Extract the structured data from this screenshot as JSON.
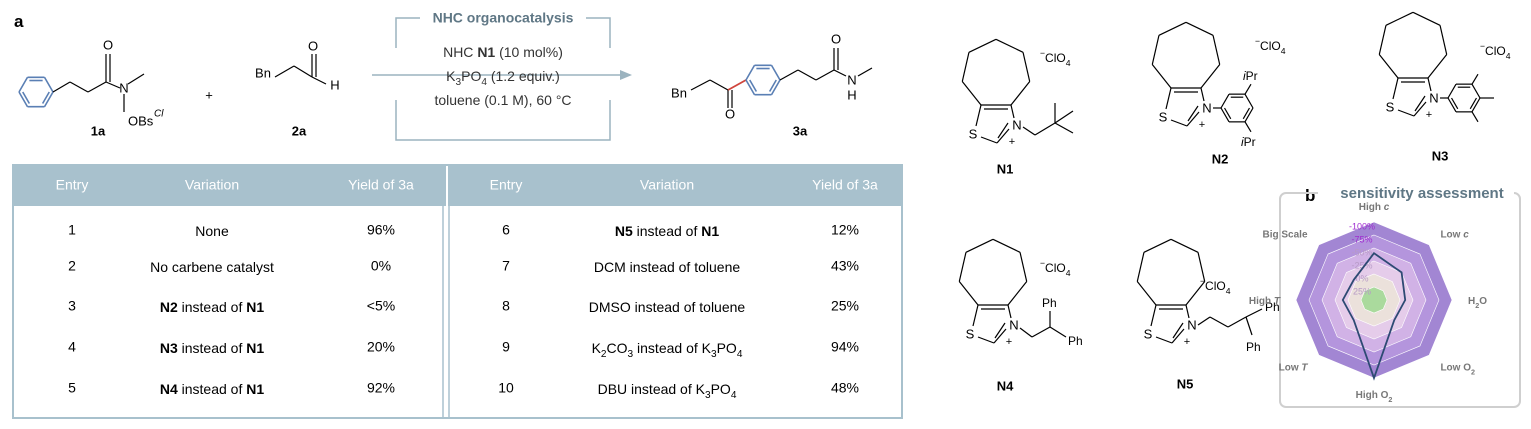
{
  "panel_labels": [
    "a",
    "b"
  ],
  "scheme": {
    "box_title": "NHC organocatalysis",
    "conditions": [
      [
        {
          "text": "NHC "
        },
        {
          "text": "N1",
          "bold": true
        },
        {
          "text": " (10 mol%)"
        }
      ],
      [
        {
          "text": "K"
        },
        {
          "text": "3",
          "sub": true
        },
        {
          "text": "PO"
        },
        {
          "text": "4",
          "sub": true
        },
        {
          "text": " (1.2 equiv.)"
        }
      ],
      [
        {
          "text": "toluene (0.1 M), 60 °C"
        }
      ]
    ],
    "plus": "+",
    "compounds": [
      {
        "label": "1a",
        "atoms": [
          "O",
          "N",
          "OBs",
          "Cl"
        ]
      },
      {
        "label": "2a",
        "atoms": [
          "Bn",
          "O",
          "H"
        ]
      },
      {
        "label": "3a",
        "atoms": [
          "Bn",
          "O",
          "O",
          "N",
          "H"
        ]
      }
    ]
  },
  "catalysts": [
    {
      "label": "N1",
      "atoms": [
        "S",
        "N",
        "+"
      ],
      "counterion": [
        {
          "text": "−",
          "sup": true
        },
        {
          "text": "ClO"
        },
        {
          "text": "4",
          "sub": true
        }
      ],
      "substituent_labels": []
    },
    {
      "label": "N2",
      "atoms": [
        "S",
        "N",
        "+"
      ],
      "counterion": [
        {
          "text": "−",
          "sup": true
        },
        {
          "text": "ClO"
        },
        {
          "text": "4",
          "sub": true
        }
      ],
      "substituent_labels": [
        [
          {
            "text": "i",
            "italic": true
          },
          {
            "text": "Pr"
          }
        ],
        [
          {
            "text": "i",
            "italic": true
          },
          {
            "text": "Pr"
          }
        ]
      ]
    },
    {
      "label": "N3",
      "atoms": [
        "S",
        "N",
        "+"
      ],
      "counterion": [
        {
          "text": "−",
          "sup": true
        },
        {
          "text": "ClO"
        },
        {
          "text": "4",
          "sub": true
        }
      ],
      "substituent_labels": []
    },
    {
      "label": "N4",
      "atoms": [
        "S",
        "N",
        "+"
      ],
      "counterion": [
        {
          "text": "−",
          "sup": true
        },
        {
          "text": "ClO"
        },
        {
          "text": "4",
          "sub": true
        }
      ],
      "substituent_labels": [
        [
          {
            "text": "Ph"
          }
        ],
        [
          {
            "text": "Ph"
          }
        ]
      ]
    },
    {
      "label": "N5",
      "atoms": [
        "S",
        "N",
        "+"
      ],
      "counterion": [
        {
          "text": "−",
          "sup": true
        },
        {
          "text": "ClO"
        },
        {
          "text": "4",
          "sub": true
        }
      ],
      "substituent_labels": [
        [
          {
            "text": "Ph"
          }
        ],
        [
          {
            "text": "Ph"
          }
        ]
      ]
    }
  ],
  "table": {
    "headers": [
      "Entry",
      "Variation",
      "Yield of 3a"
    ],
    "rows": [
      {
        "entry": "1",
        "variation": [
          {
            "text": "None"
          }
        ],
        "yield": "96%"
      },
      {
        "entry": "2",
        "variation": [
          {
            "text": "No carbene catalyst"
          }
        ],
        "yield": "0%"
      },
      {
        "entry": "3",
        "variation": [
          {
            "text": "N2",
            "bold": true
          },
          {
            "text": " instead of "
          },
          {
            "text": "N1",
            "bold": true
          }
        ],
        "yield": "<5%"
      },
      {
        "entry": "4",
        "variation": [
          {
            "text": "N3",
            "bold": true
          },
          {
            "text": " instead of "
          },
          {
            "text": "N1",
            "bold": true
          }
        ],
        "yield": "20%"
      },
      {
        "entry": "5",
        "variation": [
          {
            "text": "N4",
            "bold": true
          },
          {
            "text": " instead of "
          },
          {
            "text": "N1",
            "bold": true
          }
        ],
        "yield": "92%"
      },
      {
        "entry": "6",
        "variation": [
          {
            "text": "N5",
            "bold": true
          },
          {
            "text": " instead of "
          },
          {
            "text": "N1",
            "bold": true
          }
        ],
        "yield": "12%"
      },
      {
        "entry": "7",
        "variation": [
          {
            "text": "DCM instead of toluene"
          }
        ],
        "yield": "43%"
      },
      {
        "entry": "8",
        "variation": [
          {
            "text": "DMSO instead of toluene"
          }
        ],
        "yield": "25%"
      },
      {
        "entry": "9",
        "variation": [
          {
            "text": "K"
          },
          {
            "text": "2",
            "sub": true
          },
          {
            "text": "CO"
          },
          {
            "text": "3",
            "sub": true
          },
          {
            "text": " instead of K"
          },
          {
            "text": "3",
            "sub": true
          },
          {
            "text": "PO"
          },
          {
            "text": "4",
            "sub": true
          }
        ],
        "yield": "94%"
      },
      {
        "entry": "10",
        "variation": [
          {
            "text": "DBU instead of K"
          },
          {
            "text": "3",
            "sub": true
          },
          {
            "text": "PO"
          },
          {
            "text": "4",
            "sub": true
          }
        ],
        "yield": "48%"
      }
    ]
  },
  "chart_data": {
    "type": "radar",
    "title": "sensitivity assessment",
    "axes": [
      [
        {
          "text": "High "
        },
        {
          "text": "c",
          "italic": true
        }
      ],
      [
        {
          "text": "Low "
        },
        {
          "text": "c",
          "italic": true
        }
      ],
      [
        {
          "text": "H"
        },
        {
          "text": "2",
          "sub": true
        },
        {
          "text": "O"
        }
      ],
      [
        {
          "text": "Low O"
        },
        {
          "text": "2",
          "sub": true
        }
      ],
      [
        {
          "text": "High O"
        },
        {
          "text": "2",
          "sub": true
        }
      ],
      [
        {
          "text": "Low "
        },
        {
          "text": "T",
          "italic": true
        }
      ],
      [
        {
          "text": "High "
        },
        {
          "text": "T",
          "italic": true
        }
      ],
      [
        {
          "text": "Big Scale"
        }
      ]
    ],
    "rlim": [
      50,
      -100
    ],
    "rticks": [
      {
        "value": -100,
        "label": "-100%"
      },
      {
        "value": -75,
        "label": "-75%"
      },
      {
        "value": -50,
        "label": "-50%"
      },
      {
        "value": -25,
        "label": "-25%"
      },
      {
        "value": 0,
        "label": "0%"
      },
      {
        "value": 25,
        "label": "25%"
      }
    ],
    "ring_colors": [
      "#9d7fd1",
      "#b596dd",
      "#d3b3e6",
      "#e6cdea",
      "#ebe2da",
      "#a6d99a"
    ],
    "series": [
      {
        "color": "#2d4a73",
        "values": [
          -40,
          -25,
          -10,
          -5,
          -100,
          -5,
          -10,
          -5
        ]
      }
    ]
  }
}
